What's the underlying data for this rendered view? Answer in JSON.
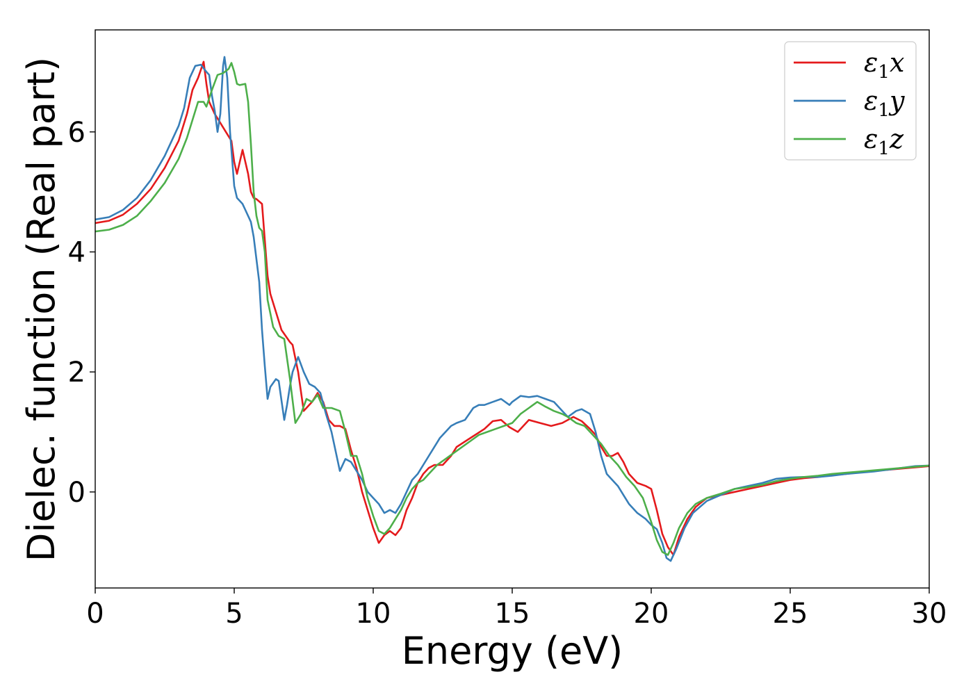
{
  "chart_data": {
    "type": "line",
    "title": "",
    "xlabel": "Energy (eV)",
    "ylabel": "Dielec. function (Real part)",
    "xlim": [
      0,
      30
    ],
    "ylim": [
      -1.6,
      7.7
    ],
    "xticks": [
      0,
      5,
      10,
      15,
      20,
      25,
      30
    ],
    "yticks": [
      0,
      2,
      4,
      6
    ],
    "grid": false,
    "legend_position": "top-right",
    "series": [
      {
        "name": "ε1x",
        "name_base": "ε",
        "name_sub": "1",
        "name_suffix": "x",
        "color": "#e41a1c",
        "x": [
          0,
          0.5,
          1,
          1.5,
          2,
          2.5,
          3,
          3.3,
          3.5,
          3.7,
          3.9,
          4.0,
          4.1,
          4.3,
          4.5,
          4.7,
          4.9,
          5.0,
          5.1,
          5.2,
          5.3,
          5.5,
          5.6,
          5.7,
          5.8,
          6.0,
          6.1,
          6.2,
          6.3,
          6.5,
          6.7,
          7.0,
          7.1,
          7.3,
          7.5,
          7.8,
          8.0,
          8.2,
          8.4,
          8.6,
          8.8,
          9.0,
          9.2,
          9.4,
          9.6,
          9.8,
          10.0,
          10.2,
          10.4,
          10.6,
          10.8,
          11.0,
          11.2,
          11.4,
          11.6,
          11.8,
          12.0,
          12.2,
          12.5,
          12.8,
          13.0,
          13.5,
          14.0,
          14.3,
          14.6,
          14.9,
          15.2,
          15.6,
          16.0,
          16.4,
          16.8,
          17.2,
          17.5,
          17.8,
          18.0,
          18.2,
          18.4,
          18.6,
          18.8,
          19.0,
          19.2,
          19.5,
          19.8,
          20.0,
          20.2,
          20.4,
          20.6,
          20.8,
          21.0,
          21.3,
          21.6,
          22.0,
          22.5,
          23.0,
          23.5,
          24.0,
          24.5,
          25.0,
          25.5,
          26.0,
          26.5,
          27.0,
          27.5,
          28.0,
          28.5,
          29.0,
          29.5,
          30.0
        ],
        "y": [
          4.48,
          4.52,
          4.62,
          4.8,
          5.05,
          5.4,
          5.85,
          6.3,
          6.7,
          6.9,
          7.17,
          6.8,
          6.5,
          6.3,
          6.15,
          6.0,
          5.85,
          5.5,
          5.3,
          5.5,
          5.7,
          5.3,
          5.0,
          4.9,
          4.88,
          4.8,
          4.2,
          3.6,
          3.3,
          3.0,
          2.7,
          2.5,
          2.45,
          2.0,
          1.35,
          1.5,
          1.65,
          1.5,
          1.2,
          1.1,
          1.1,
          1.05,
          0.7,
          0.4,
          0.0,
          -0.3,
          -0.6,
          -0.85,
          -0.72,
          -0.65,
          -0.72,
          -0.6,
          -0.3,
          -0.1,
          0.15,
          0.3,
          0.4,
          0.45,
          0.45,
          0.6,
          0.75,
          0.9,
          1.05,
          1.18,
          1.2,
          1.08,
          1.0,
          1.2,
          1.15,
          1.1,
          1.15,
          1.25,
          1.18,
          1.05,
          0.95,
          0.75,
          0.6,
          0.6,
          0.65,
          0.5,
          0.3,
          0.15,
          0.1,
          0.05,
          -0.3,
          -0.7,
          -0.92,
          -1.05,
          -0.75,
          -0.45,
          -0.25,
          -0.1,
          -0.05,
          0.0,
          0.05,
          0.1,
          0.15,
          0.2,
          0.23,
          0.25,
          0.28,
          0.3,
          0.33,
          0.35,
          0.37,
          0.39,
          0.41,
          0.43
        ]
      },
      {
        "name": "ε1y",
        "name_base": "ε",
        "name_sub": "1",
        "name_suffix": "y",
        "color": "#377eb8",
        "x": [
          0,
          0.5,
          1,
          1.5,
          2,
          2.5,
          3,
          3.2,
          3.4,
          3.6,
          3.8,
          4.0,
          4.1,
          4.2,
          4.3,
          4.4,
          4.5,
          4.6,
          4.65,
          4.75,
          4.85,
          5.0,
          5.1,
          5.3,
          5.4,
          5.6,
          5.7,
          5.9,
          6.0,
          6.1,
          6.2,
          6.3,
          6.5,
          6.6,
          6.8,
          6.9,
          7.0,
          7.1,
          7.3,
          7.5,
          7.7,
          7.9,
          8.1,
          8.3,
          8.5,
          8.8,
          9.0,
          9.2,
          9.4,
          9.6,
          9.8,
          10.0,
          10.2,
          10.4,
          10.6,
          10.8,
          11.0,
          11.2,
          11.4,
          11.6,
          11.8,
          12.0,
          12.2,
          12.4,
          12.6,
          12.8,
          13.0,
          13.3,
          13.6,
          13.8,
          14.0,
          14.3,
          14.6,
          14.9,
          15.0,
          15.3,
          15.6,
          15.9,
          16.2,
          16.5,
          16.8,
          17.0,
          17.3,
          17.5,
          17.8,
          18.0,
          18.2,
          18.4,
          18.6,
          18.8,
          19.0,
          19.2,
          19.5,
          19.8,
          20.0,
          20.2,
          20.4,
          20.55,
          20.7,
          20.9,
          21.2,
          21.5,
          22.0,
          22.5,
          23.0,
          23.5,
          24.0,
          24.5,
          25.0,
          25.5,
          26.0,
          26.5,
          27.0,
          27.5,
          28.0,
          28.5,
          29.0,
          29.5,
          30.0
        ],
        "y": [
          4.54,
          4.58,
          4.7,
          4.9,
          5.2,
          5.6,
          6.1,
          6.4,
          6.9,
          7.1,
          7.12,
          7.0,
          6.95,
          6.6,
          6.35,
          6.0,
          6.3,
          7.1,
          7.25,
          6.9,
          6.0,
          5.1,
          4.9,
          4.8,
          4.7,
          4.5,
          4.25,
          3.5,
          2.7,
          2.1,
          1.55,
          1.75,
          1.88,
          1.85,
          1.2,
          1.45,
          1.75,
          2.0,
          2.25,
          2.0,
          1.8,
          1.75,
          1.65,
          1.3,
          1.0,
          0.35,
          0.55,
          0.5,
          0.35,
          0.2,
          0.0,
          -0.1,
          -0.2,
          -0.35,
          -0.3,
          -0.35,
          -0.2,
          0.0,
          0.2,
          0.3,
          0.45,
          0.6,
          0.75,
          0.9,
          1.0,
          1.1,
          1.15,
          1.2,
          1.4,
          1.45,
          1.45,
          1.5,
          1.55,
          1.45,
          1.5,
          1.6,
          1.58,
          1.6,
          1.55,
          1.5,
          1.35,
          1.25,
          1.35,
          1.38,
          1.3,
          1.0,
          0.6,
          0.3,
          0.2,
          0.1,
          -0.05,
          -0.2,
          -0.35,
          -0.45,
          -0.55,
          -0.62,
          -0.85,
          -1.1,
          -1.15,
          -0.95,
          -0.6,
          -0.35,
          -0.15,
          -0.05,
          0.05,
          0.1,
          0.15,
          0.22,
          0.24,
          0.25,
          0.25,
          0.27,
          0.3,
          0.32,
          0.34,
          0.37,
          0.4,
          0.43,
          0.44
        ]
      },
      {
        "name": "ε1z",
        "name_base": "ε",
        "name_sub": "1",
        "name_suffix": "z",
        "color": "#4daf4a",
        "x": [
          0,
          0.5,
          1,
          1.5,
          2,
          2.5,
          3,
          3.3,
          3.5,
          3.7,
          3.9,
          4.0,
          4.2,
          4.4,
          4.6,
          4.8,
          4.9,
          5.0,
          5.1,
          5.2,
          5.4,
          5.5,
          5.6,
          5.7,
          5.8,
          5.9,
          6.0,
          6.1,
          6.2,
          6.4,
          6.6,
          6.8,
          7.0,
          7.2,
          7.4,
          7.6,
          7.8,
          8.0,
          8.2,
          8.5,
          8.8,
          9.0,
          9.2,
          9.4,
          9.6,
          9.8,
          10.0,
          10.2,
          10.4,
          10.6,
          10.8,
          11.0,
          11.2,
          11.4,
          11.6,
          11.8,
          12.0,
          12.3,
          12.6,
          12.9,
          13.2,
          13.5,
          13.8,
          14.1,
          14.4,
          14.7,
          15.0,
          15.3,
          15.6,
          15.9,
          16.2,
          16.5,
          16.8,
          17.0,
          17.3,
          17.6,
          17.9,
          18.2,
          18.5,
          18.8,
          19.1,
          19.4,
          19.7,
          20.0,
          20.2,
          20.4,
          20.6,
          20.8,
          21.0,
          21.3,
          21.6,
          22.0,
          22.5,
          23.0,
          23.5,
          24.0,
          24.5,
          25.0,
          25.5,
          26.0,
          26.5,
          27.0,
          27.5,
          28.0,
          28.5,
          29.0,
          29.5,
          30.0
        ],
        "y": [
          4.34,
          4.37,
          4.45,
          4.6,
          4.85,
          5.15,
          5.55,
          5.9,
          6.2,
          6.5,
          6.5,
          6.42,
          6.7,
          6.95,
          6.98,
          7.05,
          7.15,
          7.0,
          6.8,
          6.78,
          6.8,
          6.5,
          5.8,
          5.0,
          4.6,
          4.4,
          4.35,
          4.0,
          3.2,
          2.75,
          2.6,
          2.55,
          1.9,
          1.15,
          1.3,
          1.55,
          1.5,
          1.62,
          1.4,
          1.4,
          1.35,
          1.0,
          0.6,
          0.6,
          0.3,
          -0.1,
          -0.4,
          -0.65,
          -0.7,
          -0.6,
          -0.45,
          -0.3,
          -0.1,
          0.05,
          0.15,
          0.2,
          0.3,
          0.45,
          0.55,
          0.65,
          0.75,
          0.85,
          0.95,
          1.0,
          1.05,
          1.1,
          1.15,
          1.3,
          1.4,
          1.5,
          1.42,
          1.35,
          1.3,
          1.25,
          1.15,
          1.1,
          0.95,
          0.8,
          0.6,
          0.45,
          0.25,
          0.1,
          -0.1,
          -0.5,
          -0.8,
          -1.0,
          -1.05,
          -0.85,
          -0.6,
          -0.35,
          -0.2,
          -0.1,
          -0.03,
          0.05,
          0.08,
          0.12,
          0.18,
          0.22,
          0.25,
          0.27,
          0.3,
          0.32,
          0.34,
          0.36,
          0.38,
          0.4,
          0.42,
          0.44
        ]
      }
    ]
  }
}
